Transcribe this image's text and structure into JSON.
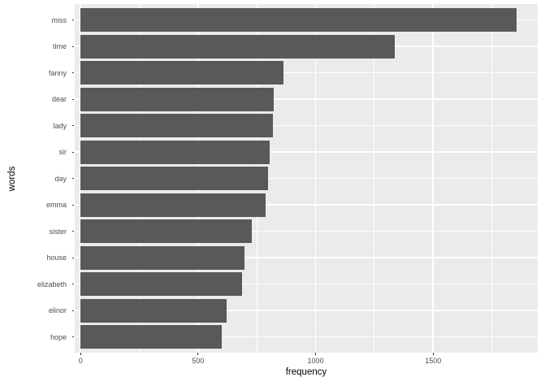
{
  "chart_data": {
    "type": "bar",
    "orientation": "horizontal",
    "title": "",
    "xlabel": "frequency",
    "ylabel": "words",
    "categories": [
      "miss",
      "time",
      "fanny",
      "dear",
      "lady",
      "sir",
      "day",
      "emma",
      "sister",
      "house",
      "elizabeth",
      "elinor",
      "hope"
    ],
    "values": [
      1855,
      1337,
      862,
      822,
      817,
      806,
      797,
      787,
      727,
      699,
      687,
      623,
      601
    ],
    "x_ticks": [
      {
        "label": "0",
        "value": 0
      },
      {
        "label": "500",
        "value": 500
      },
      {
        "label": "1000",
        "value": 1000
      },
      {
        "label": "1500",
        "value": 1500
      }
    ],
    "x_minor_ticks": [
      250,
      750,
      1250,
      1750
    ],
    "xlim": [
      -25,
      1945
    ],
    "grid": "on",
    "legend": "none",
    "colors": {
      "bar": "#595959",
      "panel_background": "#EBEBEB",
      "gridline": "#FFFFFF",
      "axis_text": "#4D4D4D",
      "axis_title": "#000000",
      "tick_mark": "#333333",
      "figure_background": "#FFFFFF"
    }
  }
}
